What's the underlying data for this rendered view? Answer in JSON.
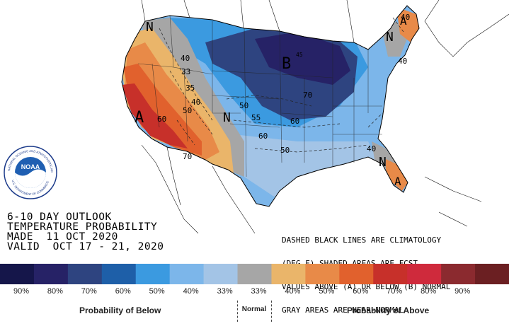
{
  "outlook": {
    "line1": "6-10 DAY OUTLOOK",
    "line2": "TEMPERATURE PROBABILITY",
    "line3": "MADE  11 OCT 2020",
    "line4": "VALID  OCT 17 - 21, 2020"
  },
  "notes": {
    "line1": "DASHED BLACK LINES ARE CLIMATOLOGY",
    "line2": "(DEG F) SHADED AREAS ARE FCST",
    "line3": "VALUES ABOVE (A) OR BELOW (B) NORMAL",
    "line4": "GRAY AREAS ARE NEAR-NORMAL"
  },
  "map_labels": {
    "above_west": "A",
    "below_central": "B",
    "normal_sw": "N",
    "normal_nw": "N",
    "normal_ne": "N",
    "above_ne": "A",
    "normal_se": "N",
    "above_fl": "A"
  },
  "contours": [
    "40",
    "33",
    "35",
    "40",
    "50",
    "50",
    "60",
    "70",
    "70",
    "55",
    "60",
    "60",
    "50",
    "40",
    "45",
    "40",
    "40"
  ],
  "legend": {
    "below_label": "Probability of Below",
    "normal_label": "Normal",
    "above_label": "Probability of Above",
    "percents": [
      "90%",
      "80%",
      "70%",
      "60%",
      "50%",
      "40%",
      "33%",
      "33%",
      "40%",
      "50%",
      "60%",
      "70%",
      "80%",
      "90%"
    ],
    "colors": [
      "#15164a",
      "#262266",
      "#2e4480",
      "#1e5fa8",
      "#3b9ae0",
      "#7cb6ea",
      "#a3c4e6",
      "#a6a6a6",
      "#eab56a",
      "#e88a48",
      "#e1612d",
      "#c7302a",
      "#cf2a3c",
      "#8b2a2f",
      "#6b1f22"
    ]
  },
  "logo": {
    "arc_text": "NATIONAL OCEANIC AND ATMOSPHERIC ADMINISTRATION",
    "bottom_text": "U.S. DEPARTMENT OF COMMERCE",
    "center": "NOAA"
  }
}
